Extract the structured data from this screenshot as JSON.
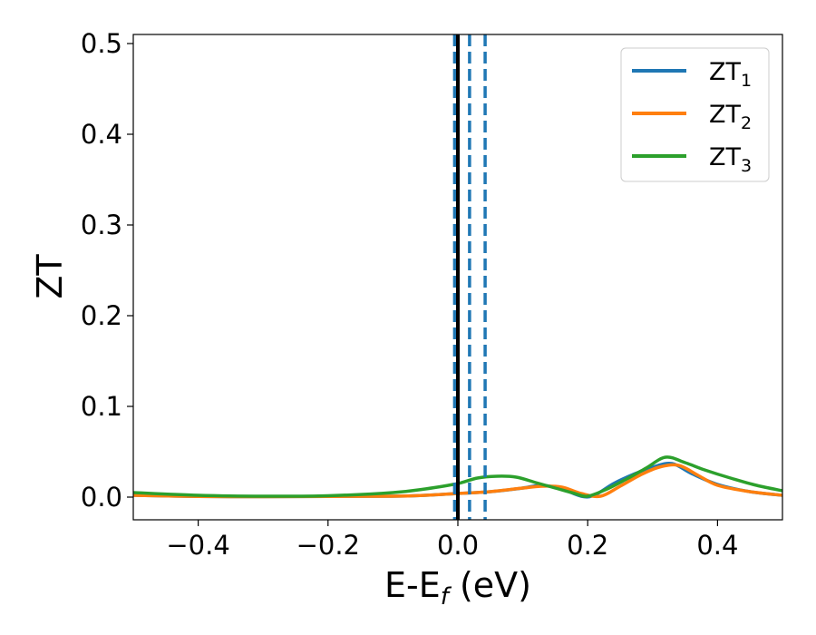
{
  "chart_data": {
    "type": "line",
    "title": "",
    "xlabel": {
      "main": "E-E",
      "sub": "f",
      "suffix": " (eV)"
    },
    "ylabel": "ZT",
    "xlim": [
      -0.5,
      0.5
    ],
    "ylim": [
      -0.025,
      0.51
    ],
    "x_ticks": [
      -0.4,
      -0.2,
      0.0,
      0.2,
      0.4
    ],
    "x_tick_labels": [
      "−0.4",
      "−0.2",
      "0.0",
      "0.2",
      "0.4"
    ],
    "y_ticks": [
      0.0,
      0.1,
      0.2,
      0.3,
      0.4,
      0.5
    ],
    "y_tick_labels": [
      "0.0",
      "0.1",
      "0.2",
      "0.3",
      "0.4",
      "0.5"
    ],
    "grid": false,
    "legend_position": "top-right",
    "series": [
      {
        "name": "ZT",
        "sub": "1",
        "color": "#1f77b4",
        "x": [
          -0.5,
          -0.4,
          -0.3,
          -0.2,
          -0.1,
          -0.05,
          0.0,
          0.05,
          0.1,
          0.13,
          0.16,
          0.19,
          0.21,
          0.24,
          0.27,
          0.3,
          0.33,
          0.36,
          0.4,
          0.45,
          0.5
        ],
        "y": [
          0.002,
          0.0008,
          0.0005,
          0.0008,
          0.001,
          0.002,
          0.004,
          0.006,
          0.01,
          0.013,
          0.009,
          0.001,
          0.002,
          0.015,
          0.025,
          0.033,
          0.037,
          0.026,
          0.014,
          0.006,
          0.002
        ]
      },
      {
        "name": "ZT",
        "sub": "2",
        "color": "#ff7f0e",
        "x": [
          -0.5,
          -0.4,
          -0.3,
          -0.2,
          -0.1,
          -0.05,
          0.0,
          0.05,
          0.1,
          0.13,
          0.16,
          0.19,
          0.22,
          0.25,
          0.28,
          0.31,
          0.34,
          0.37,
          0.4,
          0.45,
          0.5
        ],
        "y": [
          0.002,
          0.0008,
          0.0005,
          0.0008,
          0.001,
          0.002,
          0.004,
          0.006,
          0.01,
          0.012,
          0.011,
          0.004,
          0.001,
          0.012,
          0.024,
          0.033,
          0.035,
          0.024,
          0.013,
          0.006,
          0.002
        ]
      },
      {
        "name": "ZT",
        "sub": "3",
        "color": "#2ca02c",
        "x": [
          -0.5,
          -0.4,
          -0.3,
          -0.2,
          -0.1,
          -0.05,
          0.0,
          0.03,
          0.06,
          0.09,
          0.12,
          0.15,
          0.18,
          0.2,
          0.23,
          0.26,
          0.29,
          0.32,
          0.35,
          0.38,
          0.42,
          0.46,
          0.5
        ],
        "y": [
          0.005,
          0.002,
          0.001,
          0.0015,
          0.005,
          0.009,
          0.015,
          0.021,
          0.023,
          0.022,
          0.016,
          0.01,
          0.004,
          0.001,
          0.009,
          0.02,
          0.032,
          0.044,
          0.038,
          0.03,
          0.021,
          0.013,
          0.007
        ]
      }
    ],
    "vertical_lines": [
      {
        "x": 0.0,
        "color": "#000000",
        "style": "solid"
      },
      {
        "x": -0.005,
        "color": "#1f77b4",
        "style": "dashed"
      },
      {
        "x": 0.018,
        "color": "#1f77b4",
        "style": "dashed"
      },
      {
        "x": 0.042,
        "color": "#1f77b4",
        "style": "dashed"
      }
    ]
  }
}
